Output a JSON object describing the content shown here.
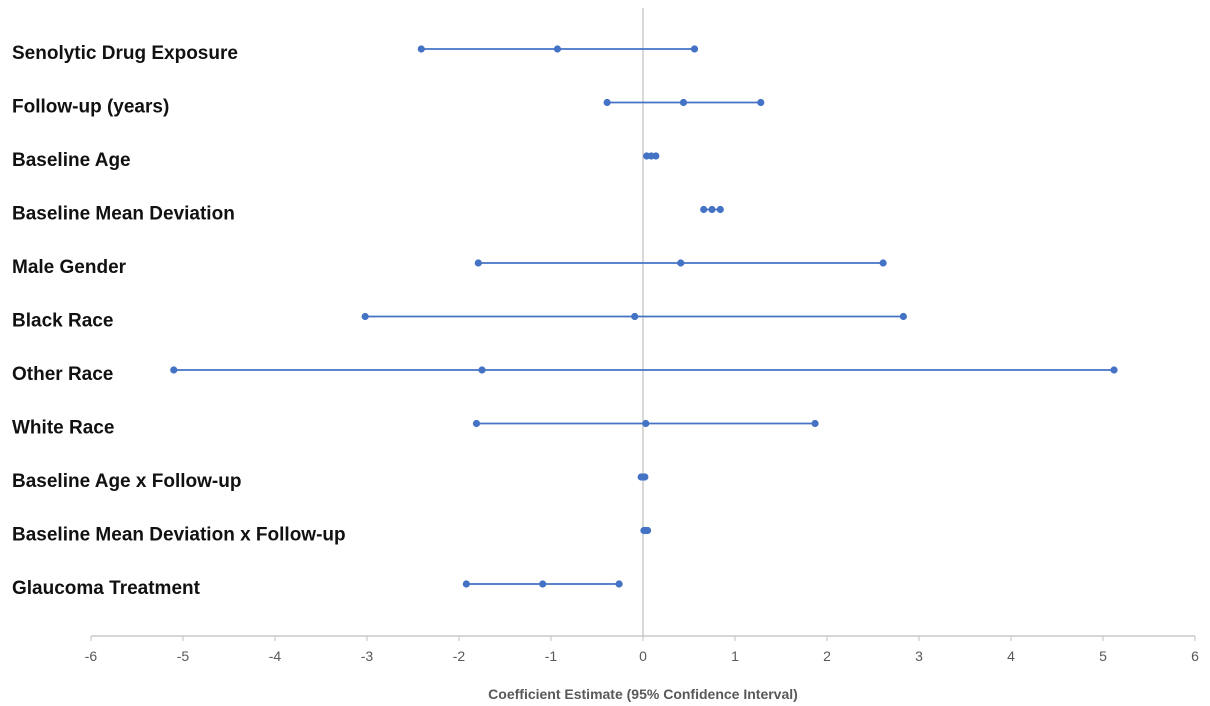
{
  "chart_data": {
    "type": "forest",
    "title": "",
    "xlabel": "Coefficient Estimate (95% Confidence Interval)",
    "ylabel": "",
    "xlim": [
      -6,
      6
    ],
    "x_ticks": [
      -6,
      -5,
      -4,
      -3,
      -2,
      -1,
      0,
      1,
      2,
      3,
      4,
      5,
      6
    ],
    "reference_line": 0,
    "grid": false,
    "legend": "none",
    "colors": {
      "series": "#4472c4",
      "axis": "#bfbfbf",
      "reference": "#bfbfbf",
      "label": "#111111",
      "tick": "#595959"
    },
    "rows": [
      {
        "label": "Senolytic Drug Exposure",
        "lower": -2.41,
        "estimate": -0.93,
        "upper": 0.56
      },
      {
        "label": "Follow-up (years)",
        "lower": -0.39,
        "estimate": 0.44,
        "upper": 1.28
      },
      {
        "label": "Baseline Age",
        "lower": 0.04,
        "estimate": 0.09,
        "upper": 0.14
      },
      {
        "label": "Baseline Mean Deviation",
        "lower": 0.66,
        "estimate": 0.75,
        "upper": 0.84
      },
      {
        "label": "Male Gender",
        "lower": -1.79,
        "estimate": 0.41,
        "upper": 2.61
      },
      {
        "label": "Black Race",
        "lower": -3.02,
        "estimate": -0.09,
        "upper": 2.83
      },
      {
        "label": "Other Race",
        "lower": -5.1,
        "estimate": -1.75,
        "upper": 5.12
      },
      {
        "label": "White Race",
        "lower": -1.81,
        "estimate": 0.03,
        "upper": 1.87
      },
      {
        "label": "Baseline Age x Follow-up",
        "lower": -0.02,
        "estimate": 0.0,
        "upper": 0.02
      },
      {
        "label": "Baseline Mean Deviation x Follow-up",
        "lower": 0.01,
        "estimate": 0.03,
        "upper": 0.05
      },
      {
        "label": "Glaucoma Treatment",
        "lower": -1.92,
        "estimate": -1.09,
        "upper": -0.26
      }
    ]
  }
}
